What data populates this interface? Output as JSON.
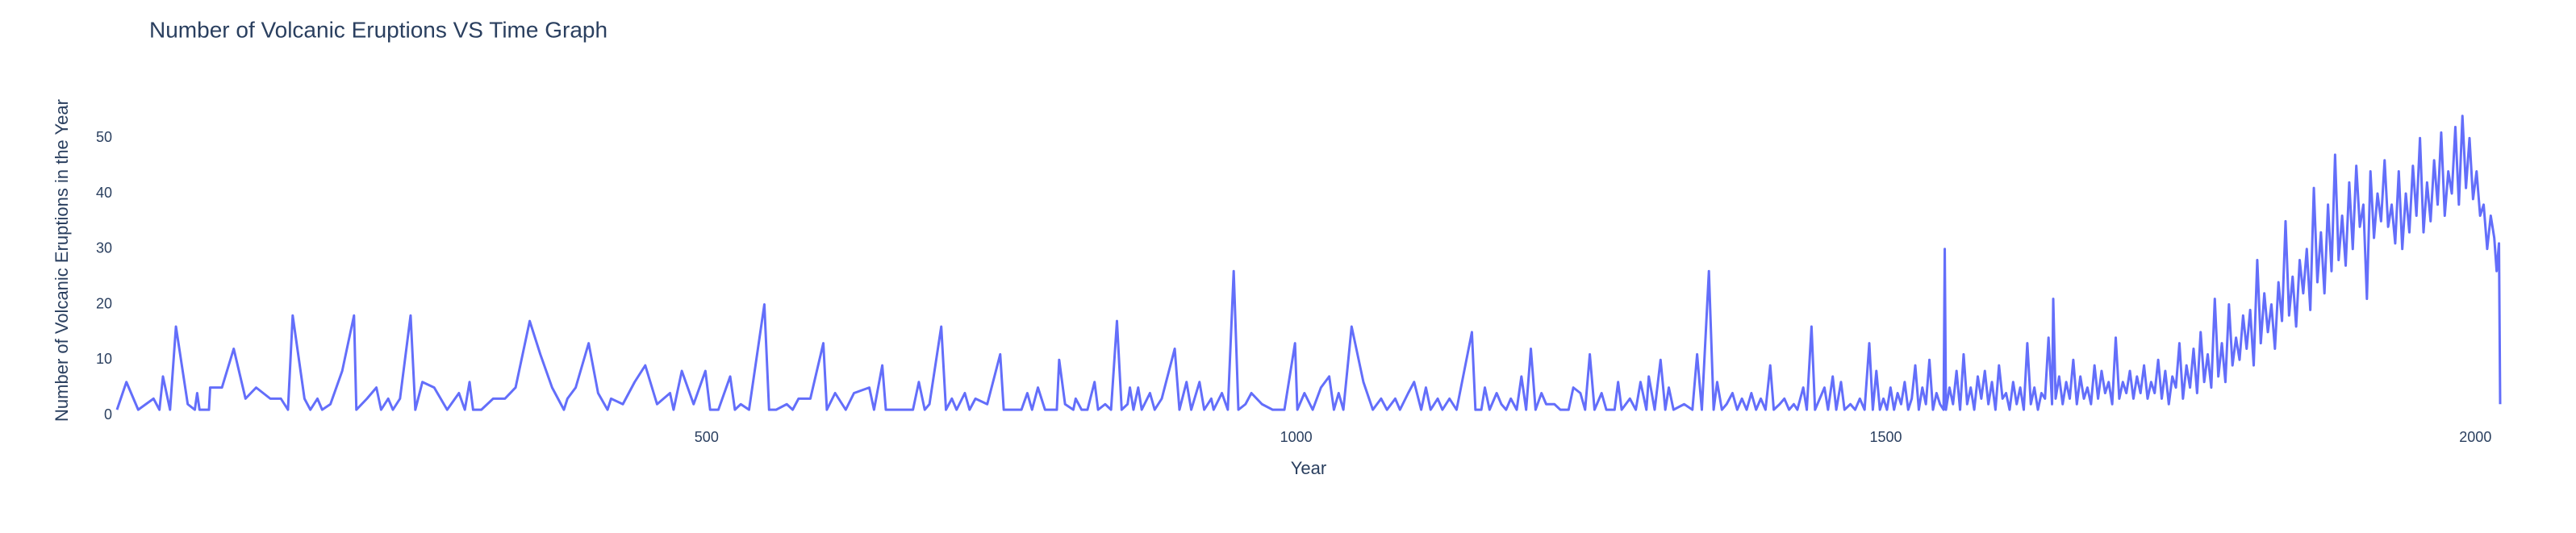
{
  "chart_data": {
    "type": "line",
    "title": "Number of Volcanic Eruptions VS Time Graph",
    "x_label": "Year",
    "y_label": "Number of Volcanic Eruptions in the Year",
    "color": "#636efa",
    "grid": false,
    "xlim": [
      0,
      2021
    ],
    "ylim": [
      0,
      56
    ],
    "xticks": [
      500,
      1000,
      1500,
      2000
    ],
    "yticks": [
      0,
      10,
      20,
      30,
      40,
      50
    ],
    "x": [
      0,
      8,
      18,
      31,
      36,
      39,
      45,
      50,
      60,
      66,
      68,
      70,
      78,
      79,
      89,
      99,
      109,
      118,
      130,
      139,
      145,
      149,
      159,
      164,
      170,
      174,
      181,
      191,
      201,
      203,
      212,
      220,
      224,
      230,
      234,
      240,
      249,
      253,
      259,
      269,
      280,
      290,
      295,
      299,
      302,
      309,
      319,
      329,
      338,
      350,
      359,
      369,
      379,
      382,
      389,
      400,
      408,
      416,
      419,
      429,
      439,
      448,
      458,
      469,
      472,
      479,
      489,
      499,
      503,
      510,
      520,
      524,
      529,
      536,
      549,
      553,
      559,
      568,
      573,
      578,
      588,
      599,
      602,
      609,
      618,
      625,
      638,
      642,
      649,
      652,
      659,
      669,
      675,
      680,
      685,
      689,
      699,
      703,
      708,
      712,
      719,
      723,
      728,
      738,
      749,
      752,
      758,
      767,
      772,
      776,
      781,
      787,
      797,
      799,
      804,
      811,
      813,
      818,
      823,
      829,
      832,
      838,
      843,
      848,
      852,
      857,
      859,
      862,
      866,
      869,
      876,
      880,
      886,
      897,
      901,
      907,
      911,
      918,
      922,
      928,
      930,
      937,
      942,
      947,
      951,
      957,
      962,
      971,
      980,
      990,
      999,
      1001,
      1007,
      1014,
      1021,
      1028,
      1032,
      1036,
      1040,
      1047,
      1057,
      1065,
      1072,
      1077,
      1084,
      1088,
      1095,
      1100,
      1106,
      1110,
      1114,
      1120,
      1124,
      1130,
      1136,
      1149,
      1152,
      1157,
      1160,
      1164,
      1170,
      1174,
      1178,
      1182,
      1187,
      1191,
      1195,
      1199,
      1203,
      1208,
      1212,
      1219,
      1224,
      1231,
      1235,
      1241,
      1245,
      1249,
      1253,
      1259,
      1263,
      1270,
      1273,
      1276,
      1283,
      1288,
      1292,
      1297,
      1299,
      1304,
      1309,
      1313,
      1316,
      1320,
      1329,
      1336,
      1340,
      1344,
      1350,
      1354,
      1357,
      1361,
      1365,
      1370,
      1374,
      1378,
      1382,
      1386,
      1390,
      1394,
      1398,
      1402,
      1405,
      1410,
      1414,
      1418,
      1422,
      1425,
      1430,
      1433,
      1437,
      1440,
      1444,
      1448,
      1451,
      1455,
      1458,
      1462,
      1465,
      1470,
      1474,
      1478,
      1482,
      1486,
      1489,
      1492,
      1495,
      1498,
      1501,
      1504,
      1507,
      1510,
      1513,
      1516,
      1519,
      1522,
      1525,
      1528,
      1531,
      1534,
      1537,
      1540,
      1543,
      1546,
      1549,
      1550,
      1551,
      1554,
      1557,
      1560,
      1563,
      1566,
      1569,
      1572,
      1575,
      1578,
      1581,
      1584,
      1587,
      1590,
      1593,
      1596,
      1599,
      1602,
      1605,
      1608,
      1611,
      1614,
      1617,
      1620,
      1623,
      1626,
      1629,
      1632,
      1635,
      1638,
      1641,
      1642,
      1644,
      1647,
      1650,
      1653,
      1656,
      1659,
      1662,
      1665,
      1668,
      1671,
      1674,
      1677,
      1680,
      1683,
      1686,
      1689,
      1692,
      1695,
      1698,
      1701,
      1704,
      1707,
      1710,
      1713,
      1716,
      1719,
      1722,
      1725,
      1728,
      1731,
      1734,
      1737,
      1740,
      1743,
      1746,
      1749,
      1752,
      1755,
      1758,
      1761,
      1764,
      1767,
      1770,
      1773,
      1776,
      1779,
      1782,
      1785,
      1788,
      1791,
      1794,
      1797,
      1800,
      1803,
      1806,
      1809,
      1812,
      1815,
      1818,
      1821,
      1824,
      1827,
      1830,
      1833,
      1836,
      1839,
      1842,
      1845,
      1848,
      1851,
      1854,
      1857,
      1860,
      1863,
      1866,
      1869,
      1872,
      1875,
      1878,
      1881,
      1884,
      1887,
      1890,
      1893,
      1896,
      1899,
      1902,
      1905,
      1908,
      1911,
      1914,
      1917,
      1920,
      1923,
      1926,
      1929,
      1932,
      1935,
      1938,
      1941,
      1944,
      1947,
      1950,
      1953,
      1956,
      1959,
      1962,
      1965,
      1968,
      1971,
      1974,
      1977,
      1980,
      1983,
      1986,
      1989,
      1992,
      1995,
      1998,
      2001,
      2004,
      2007,
      2010,
      2013,
      2016,
      2018,
      2020,
      2021
    ],
    "values": [
      1,
      6,
      1,
      3,
      1,
      7,
      1,
      16,
      2,
      1,
      4,
      1,
      1,
      5,
      5,
      12,
      3,
      5,
      3,
      3,
      1,
      18,
      3,
      1,
      3,
      1,
      2,
      8,
      18,
      1,
      3,
      5,
      1,
      3,
      1,
      3,
      18,
      1,
      6,
      5,
      1,
      4,
      1,
      6,
      1,
      1,
      3,
      3,
      5,
      17,
      11,
      5,
      1,
      3,
      5,
      13,
      4,
      1,
      3,
      2,
      6,
      9,
      2,
      4,
      1,
      8,
      2,
      8,
      1,
      1,
      7,
      1,
      2,
      1,
      20,
      1,
      1,
      2,
      1,
      3,
      3,
      13,
      1,
      4,
      1,
      4,
      5,
      1,
      9,
      1,
      1,
      1,
      1,
      6,
      1,
      2,
      16,
      1,
      3,
      1,
      4,
      1,
      3,
      2,
      11,
      1,
      1,
      1,
      4,
      1,
      5,
      1,
      1,
      10,
      2,
      1,
      3,
      1,
      1,
      6,
      1,
      2,
      1,
      17,
      1,
      2,
      5,
      1,
      5,
      1,
      4,
      1,
      3,
      12,
      1,
      6,
      1,
      6,
      1,
      3,
      1,
      4,
      1,
      26,
      1,
      2,
      4,
      2,
      1,
      1,
      13,
      1,
      4,
      1,
      5,
      7,
      1,
      4,
      1,
      16,
      6,
      1,
      3,
      1,
      3,
      1,
      4,
      6,
      1,
      5,
      1,
      3,
      1,
      3,
      1,
      15,
      1,
      1,
      5,
      1,
      4,
      2,
      1,
      3,
      1,
      7,
      1,
      12,
      1,
      4,
      2,
      2,
      1,
      1,
      5,
      4,
      1,
      11,
      1,
      4,
      1,
      1,
      6,
      1,
      3,
      1,
      6,
      1,
      7,
      1,
      10,
      1,
      5,
      1,
      2,
      1,
      11,
      1,
      26,
      1,
      6,
      1,
      2,
      4,
      1,
      3,
      1,
      4,
      1,
      3,
      1,
      9,
      1,
      2,
      3,
      1,
      2,
      1,
      5,
      1,
      16,
      1,
      3,
      5,
      1,
      7,
      1,
      6,
      1,
      2,
      1,
      3,
      1,
      13,
      1,
      8,
      1,
      3,
      1,
      5,
      1,
      4,
      2,
      6,
      1,
      3,
      9,
      1,
      5,
      2,
      10,
      1,
      4,
      2,
      1,
      30,
      1,
      5,
      2,
      8,
      1,
      11,
      2,
      5,
      1,
      7,
      3,
      8,
      2,
      6,
      1,
      9,
      3,
      4,
      1,
      6,
      2,
      5,
      1,
      13,
      2,
      5,
      1,
      4,
      3,
      14,
      2,
      21,
      3,
      7,
      2,
      6,
      3,
      10,
      2,
      7,
      3,
      5,
      2,
      9,
      3,
      8,
      4,
      6,
      2,
      14,
      3,
      6,
      4,
      8,
      3,
      7,
      4,
      9,
      3,
      6,
      4,
      10,
      3,
      8,
      2,
      7,
      5,
      13,
      3,
      9,
      5,
      12,
      4,
      15,
      6,
      11,
      5,
      21,
      7,
      13,
      6,
      20,
      9,
      14,
      10,
      18,
      12,
      19,
      9,
      28,
      13,
      22,
      15,
      20,
      12,
      24,
      17,
      35,
      18,
      25,
      16,
      28,
      22,
      30,
      19,
      41,
      24,
      33,
      22,
      38,
      26,
      47,
      28,
      36,
      27,
      42,
      30,
      45,
      34,
      38,
      21,
      44,
      32,
      40,
      35,
      46,
      34,
      38,
      31,
      44,
      30,
      40,
      33,
      45,
      36,
      50,
      33,
      42,
      35,
      46,
      38,
      51,
      36,
      44,
      40,
      52,
      38,
      54,
      41,
      50,
      39,
      44,
      36,
      38,
      30,
      36,
      32,
      26,
      31,
      2
    ]
  }
}
